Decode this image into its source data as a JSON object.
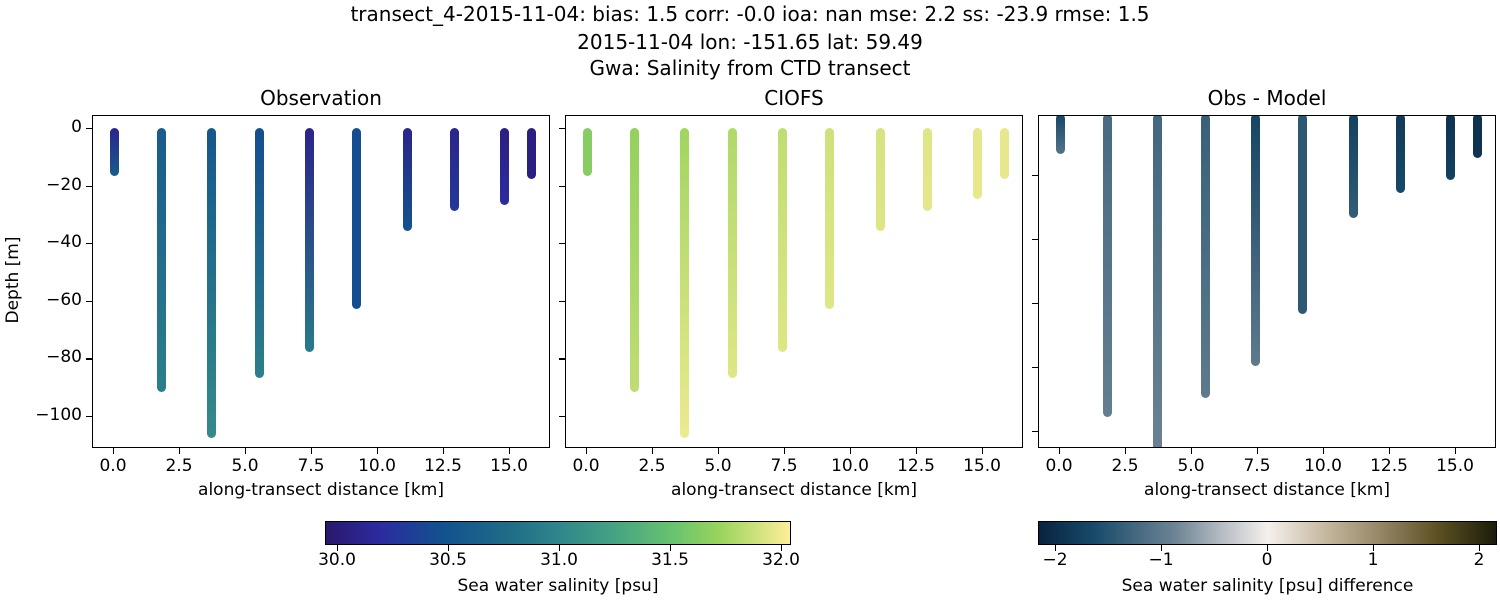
{
  "figure": {
    "suptitle_lines": [
      "transect_4-2015-11-04: bias: 1.5  corr: -0.0  ioa: nan  mse: 2.2  ss: -23.9  rmse: 1.5",
      "2015-11-04 lon: -151.65 lat: 59.49",
      "Gwa: Salinity from CTD transect"
    ]
  },
  "panels": [
    {
      "title": "Observation",
      "xlabel": "along-transect distance [km]",
      "ylabel": "Depth [m]"
    },
    {
      "title": "CIOFS",
      "xlabel": "along-transect distance [km]",
      "ylabel": ""
    },
    {
      "title": "Obs - Model",
      "xlabel": "along-transect distance [km]",
      "ylabel": ""
    }
  ],
  "xticks": [
    "0.0",
    "2.5",
    "5.0",
    "7.5",
    "10.0",
    "12.5",
    "15.0"
  ],
  "yticks": [
    "0",
    "−20",
    "−40",
    "−60",
    "−80",
    "−100"
  ],
  "colorbars": [
    {
      "label": "Sea water salinity [psu]",
      "ticks": [
        "30.0",
        "30.5",
        "31.0",
        "31.5",
        "32.0"
      ],
      "colormap": "haline",
      "range": [
        29.95,
        32.05
      ]
    },
    {
      "label": "Sea water salinity [psu] difference",
      "ticks": [
        "−2",
        "−1",
        "0",
        "1",
        "2"
      ],
      "colormap": "diff",
      "range": [
        -2.15,
        2.15
      ]
    }
  ],
  "chart_data": [
    {
      "type": "scatter",
      "title": "Observation",
      "xlabel": "along-transect distance [km]",
      "ylabel": "Depth [m]",
      "xlim": [
        -0.8,
        16.5
      ],
      "ylim": [
        -111,
        4
      ],
      "stations_km": [
        0.0,
        1.8,
        3.7,
        5.5,
        7.4,
        9.2,
        11.1,
        12.9,
        14.8,
        15.8
      ],
      "max_depth_m": [
        -15,
        -90,
        -106,
        -85,
        -76,
        -61,
        -34,
        -27,
        -25,
        -16
      ],
      "salinity_top_psu": [
        30.1,
        30.6,
        30.55,
        30.45,
        30.1,
        30.45,
        30.1,
        30.1,
        30.05,
        30.05
      ],
      "salinity_bottom_psu": [
        30.6,
        30.95,
        31.05,
        30.95,
        30.9,
        30.45,
        30.5,
        30.3,
        30.2,
        30.05
      ],
      "colorbar": "Sea water salinity [psu]"
    },
    {
      "type": "scatter",
      "title": "CIOFS",
      "xlabel": "along-transect distance [km]",
      "xlim": [
        -0.8,
        16.5
      ],
      "ylim": [
        -111,
        4
      ],
      "stations_km": [
        0.0,
        1.8,
        3.7,
        5.5,
        7.4,
        9.2,
        11.1,
        12.9,
        14.8,
        15.8
      ],
      "max_depth_m": [
        -15,
        -90,
        -106,
        -85,
        -76,
        -61,
        -34,
        -27,
        -23,
        -16
      ],
      "salinity_top_psu": [
        31.65,
        31.7,
        31.75,
        31.8,
        31.85,
        31.9,
        31.92,
        31.95,
        31.97,
        31.98
      ],
      "salinity_bottom_psu": [
        31.65,
        31.85,
        32.0,
        31.95,
        31.95,
        31.95,
        31.95,
        31.97,
        31.98,
        31.98
      ],
      "colorbar": "Sea water salinity [psu]"
    },
    {
      "type": "scatter",
      "title": "Obs - Model",
      "xlabel": "along-transect distance [km]",
      "xlim": [
        -0.8,
        16.5
      ],
      "ylim": [
        -105,
        -1
      ],
      "stations_km": [
        0.0,
        1.8,
        3.7,
        5.5,
        7.4,
        9.2,
        11.1,
        12.9,
        14.8,
        15.8
      ],
      "max_depth_m": [
        -12,
        -94,
        -106,
        -88,
        -78,
        -62,
        -32,
        -24,
        -20,
        -13
      ],
      "difference_top_psu": [
        -1.7,
        -1.2,
        -1.25,
        -1.35,
        -1.7,
        -1.45,
        -1.75,
        -1.85,
        -1.95,
        -1.95
      ],
      "difference_bottom_psu": [
        -1.1,
        -0.95,
        -0.9,
        -1.0,
        -1.0,
        -1.45,
        -1.4,
        -1.65,
        -1.75,
        -1.95
      ],
      "colorbar": "Sea water salinity [psu] difference"
    }
  ]
}
